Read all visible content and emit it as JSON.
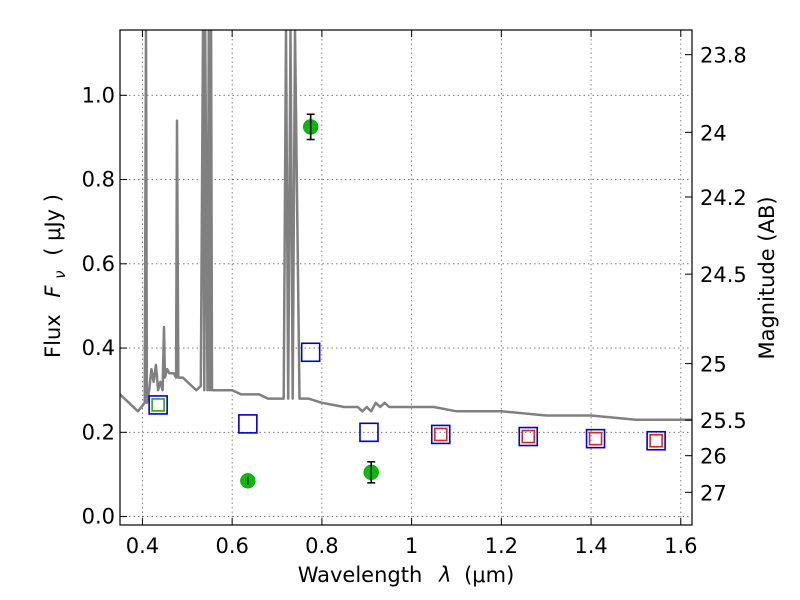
{
  "chart_data": {
    "type": "scatter",
    "xlabel_prefix": "Wavelength",
    "xlabel_symbol": "λ",
    "xlabel_units": "(μm)",
    "ylabel_prefix": "Flux",
    "ylabel_symbol": "F",
    "ylabel_subscript": "ν",
    "ylabel_units": "( μJy )",
    "y2label": "Magnitude (AB)",
    "xlim": [
      0.35,
      1.625
    ],
    "ylim": [
      -0.02,
      1.155
    ],
    "grid": true,
    "x_ticks": [
      {
        "value": 0.4,
        "label": "0.4"
      },
      {
        "value": 0.6,
        "label": "0.6"
      },
      {
        "value": 0.8,
        "label": "0.8"
      },
      {
        "value": 1.0,
        "label": "1"
      },
      {
        "value": 1.2,
        "label": "1.2"
      },
      {
        "value": 1.4,
        "label": "1.4"
      },
      {
        "value": 1.6,
        "label": "1.6"
      }
    ],
    "y_ticks": [
      {
        "value": 0.0,
        "label": "0.0"
      },
      {
        "value": 0.2,
        "label": "0.2"
      },
      {
        "value": 0.4,
        "label": "0.4"
      },
      {
        "value": 0.6,
        "label": "0.6"
      },
      {
        "value": 0.8,
        "label": "0.8"
      },
      {
        "value": 1.0,
        "label": "1.0"
      }
    ],
    "y2_ticks": [
      {
        "value": 23.8,
        "label": "23.8"
      },
      {
        "value": 24.0,
        "label": "24"
      },
      {
        "value": 24.2,
        "label": "24.2"
      },
      {
        "value": 24.5,
        "label": "24.5"
      },
      {
        "value": 25.0,
        "label": "25"
      },
      {
        "value": 25.5,
        "label": "25.5"
      },
      {
        "value": 26.0,
        "label": "26"
      },
      {
        "value": 27.0,
        "label": "27"
      }
    ],
    "series": [
      {
        "kind": "line",
        "color": "#808080",
        "x": [
          0.35,
          0.37,
          0.39,
          0.405,
          0.408,
          0.41,
          0.415,
          0.42,
          0.425,
          0.43,
          0.435,
          0.44,
          0.445,
          0.448,
          0.45,
          0.455,
          0.46,
          0.47,
          0.475,
          0.477,
          0.48,
          0.49,
          0.5,
          0.51,
          0.52,
          0.53,
          0.535,
          0.538,
          0.54,
          0.545,
          0.548,
          0.55,
          0.553,
          0.555,
          0.56,
          0.58,
          0.6,
          0.62,
          0.64,
          0.66,
          0.68,
          0.7,
          0.715,
          0.72,
          0.725,
          0.73,
          0.735,
          0.74,
          0.75,
          0.77,
          0.8,
          0.85,
          0.88,
          0.89,
          0.9,
          0.91,
          0.92,
          0.93,
          0.94,
          0.95,
          1.0,
          1.05,
          1.1,
          1.2,
          1.3,
          1.4,
          1.5,
          1.6,
          1.625
        ],
        "y": [
          0.29,
          0.27,
          0.25,
          0.27,
          1.155,
          0.27,
          0.3,
          0.35,
          0.32,
          0.36,
          0.3,
          0.32,
          0.3,
          0.45,
          0.33,
          0.35,
          0.34,
          0.34,
          0.33,
          0.94,
          0.33,
          0.33,
          0.32,
          0.31,
          0.3,
          0.31,
          1.155,
          0.3,
          1.155,
          0.3,
          1.155,
          0.3,
          1.155,
          0.3,
          0.3,
          0.3,
          0.3,
          0.29,
          0.29,
          0.29,
          0.28,
          0.28,
          0.28,
          1.155,
          0.28,
          1.155,
          0.28,
          1.155,
          0.28,
          0.28,
          0.27,
          0.26,
          0.26,
          0.25,
          0.26,
          0.25,
          0.27,
          0.26,
          0.27,
          0.26,
          0.26,
          0.26,
          0.25,
          0.25,
          0.24,
          0.24,
          0.23,
          0.23,
          0.23
        ]
      },
      {
        "kind": "open-square",
        "color": "#0000cc",
        "x": [
          0.435,
          0.635,
          0.775,
          0.905,
          1.065,
          1.26,
          1.41,
          1.545
        ],
        "y": [
          0.265,
          0.22,
          0.39,
          0.2,
          0.195,
          0.19,
          0.185,
          0.18
        ]
      },
      {
        "kind": "open-square-small",
        "color": "#d62728",
        "x": [
          1.065,
          1.26,
          1.41,
          1.545
        ],
        "y": [
          0.195,
          0.19,
          0.185,
          0.18
        ]
      },
      {
        "kind": "open-square-small",
        "color": "#2ca02c",
        "x": [
          0.435
        ],
        "y": [
          0.265
        ]
      },
      {
        "kind": "point-errorbar",
        "color": "#00bb00",
        "x": [
          0.635,
          0.775,
          0.91
        ],
        "y": [
          0.085,
          0.925,
          0.105
        ],
        "yerr": [
          0.01,
          0.03,
          0.025
        ]
      }
    ]
  }
}
